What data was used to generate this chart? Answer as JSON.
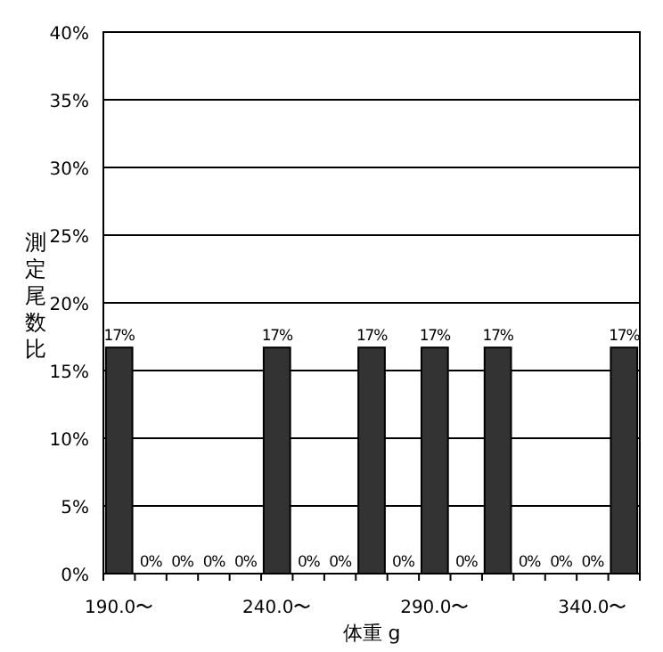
{
  "chart_data": {
    "type": "bar",
    "xlabel": "体重 g",
    "ylabel": "測定尾数比",
    "categories": [
      "190.0〜",
      null,
      null,
      null,
      null,
      "240.0〜",
      null,
      null,
      null,
      null,
      "290.0〜",
      null,
      null,
      null,
      null,
      "340.0〜",
      null
    ],
    "values": [
      16.7,
      0,
      0,
      0,
      0,
      16.7,
      0,
      0,
      16.7,
      0,
      16.7,
      0,
      16.7,
      0,
      0,
      0,
      16.7
    ],
    "value_labels": [
      "17%",
      "0%",
      "0%",
      "0%",
      "0%",
      "17%",
      "0%",
      "0%",
      "17%",
      "0%",
      "17%",
      "0%",
      "17%",
      "0%",
      "0%",
      "0%",
      "17%"
    ],
    "color": "#333333",
    "ylim": [
      0,
      40
    ],
    "yticks": [
      {
        "value": 0,
        "label": "0%"
      },
      {
        "value": 5,
        "label": "5%"
      },
      {
        "value": 10,
        "label": "10%"
      },
      {
        "value": 15,
        "label": "15%"
      },
      {
        "value": 20,
        "label": "20%"
      },
      {
        "value": 25,
        "label": "25%"
      },
      {
        "value": 30,
        "label": "30%"
      },
      {
        "value": 35,
        "label": "35%"
      },
      {
        "value": 40,
        "label": "40%"
      }
    ],
    "grid": "y"
  }
}
